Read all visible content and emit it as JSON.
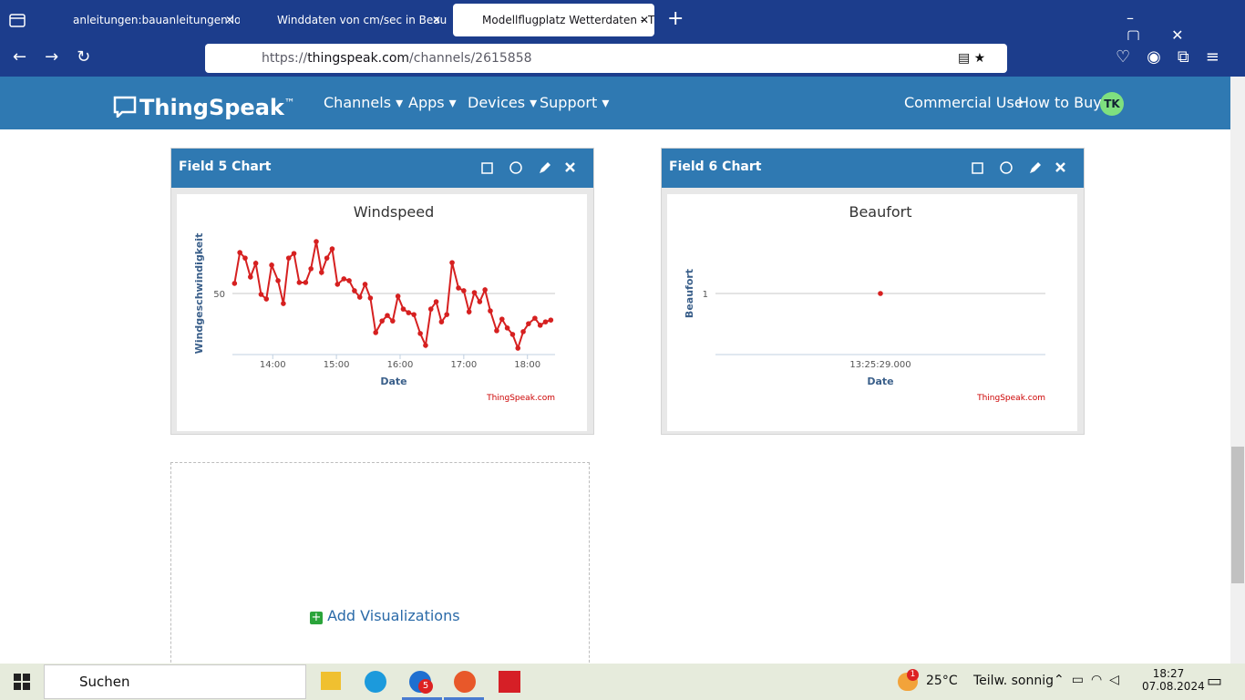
{
  "browser": {
    "tabs": [
      "anleitungen:bauanleitungen:lo",
      "Winddaten von cm/sec in Beau",
      "Modellflugplatz Wetterdaten - T"
    ],
    "url": {
      "scheme": "https://",
      "host": "thingspeak.com",
      "path": "/channels/2615858"
    }
  },
  "site_nav": {
    "brand": "ThingSpeak",
    "trademark": "™",
    "menus": [
      "Channels",
      "Apps",
      "Devices",
      "Support"
    ],
    "links": [
      "Commercial Use",
      "How to Buy"
    ],
    "avatar": "TK"
  },
  "panels": [
    {
      "title": "Field 5 Chart"
    },
    {
      "title": "Field 6 Chart"
    }
  ],
  "chart_data": [
    {
      "type": "line",
      "title": "Windspeed",
      "y_label": "Windgeschwindigkeit",
      "x_label": "Date",
      "credit": "ThingSpeak.com",
      "color": "#d62020",
      "x": [
        "13:24",
        "13:29",
        "13:34",
        "13:39",
        "13:44",
        "13:49",
        "13:54",
        "13:59",
        "14:05",
        "14:10",
        "14:15",
        "14:20",
        "14:25",
        "14:31",
        "14:36",
        "14:41",
        "14:46",
        "14:51",
        "14:56",
        "15:01",
        "15:07",
        "15:12",
        "15:17",
        "15:22",
        "15:27",
        "15:32",
        "15:37",
        "15:43",
        "15:48",
        "15:53",
        "15:58",
        "16:03",
        "16:08",
        "16:13",
        "16:19",
        "16:24",
        "16:29",
        "16:34",
        "16:39",
        "16:44",
        "16:49",
        "16:55",
        "17:00",
        "17:05",
        "17:10",
        "17:15",
        "17:20",
        "17:25",
        "17:31",
        "17:36",
        "17:41",
        "17:46",
        "17:51",
        "17:56",
        "18:01",
        "18:07",
        "18:12",
        "18:17",
        "18:22"
      ],
      "values": [
        53.3,
        63.4,
        61.6,
        55.4,
        59.9,
        49.7,
        48.2,
        59.3,
        54.2,
        46.7,
        61.6,
        63.1,
        53.6,
        53.6,
        58.1,
        67.0,
        56.9,
        61.6,
        64.6,
        53.0,
        54.8,
        54.2,
        50.9,
        48.8,
        53.0,
        48.5,
        37.2,
        41.0,
        42.8,
        41.0,
        49.1,
        44.9,
        43.7,
        43.1,
        36.9,
        33.0,
        44.9,
        47.3,
        40.7,
        43.1,
        60.1,
        51.8,
        50.9,
        44.0,
        50.3,
        47.3,
        51.2,
        44.3,
        37.8,
        41.6,
        38.7,
        36.6,
        32.1,
        37.5,
        40.1,
        41.9,
        39.6,
        40.7,
        41.3
      ],
      "xlim": [
        "13:22",
        "18:26"
      ],
      "xticks": [
        "14:00",
        "15:00",
        "16:00",
        "17:00",
        "18:00"
      ],
      "ylim": [
        30,
        70
      ],
      "yticks": [
        50
      ],
      "grid": true
    },
    {
      "type": "line",
      "title": "Beaufort",
      "y_label": "Beaufort",
      "x_label": "Date",
      "credit": "ThingSpeak.com",
      "color": "#d62020",
      "categories": [
        "13:25:29.000"
      ],
      "values": [
        1
      ],
      "ylim": [
        0,
        2
      ],
      "yticks": [
        1
      ],
      "grid": true
    }
  ],
  "add_visualizations": "Add Visualizations",
  "taskbar": {
    "search": "Suchen",
    "weather_badge": "1",
    "temperature": "25°C",
    "weather": "Teilw. sonnig",
    "app_badge": "5",
    "time": "18:27",
    "date": "07.08.2024"
  }
}
